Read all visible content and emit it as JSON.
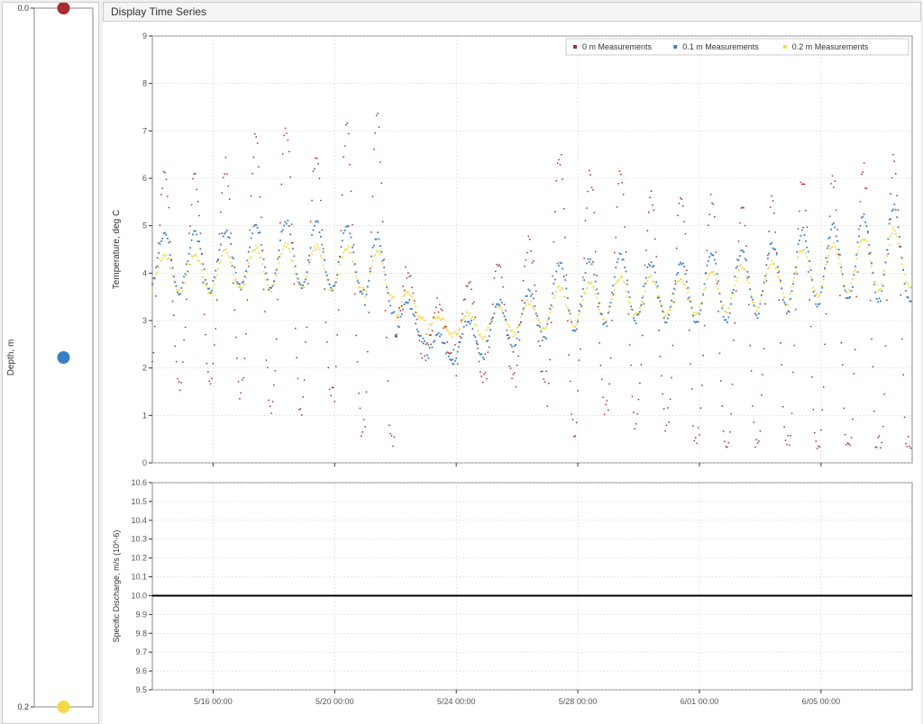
{
  "panel_title": "Display Time Series",
  "depth_panel": {
    "ylabel": "Depth, m",
    "yticks": [
      0.0,
      0.2
    ],
    "ytick_labels": [
      "0.0",
      "0.2"
    ],
    "points": [
      {
        "depth": 0.0,
        "color": "#a82c2c",
        "radius": 7
      },
      {
        "depth": 0.1,
        "color": "#3a7fc4",
        "radius": 7
      },
      {
        "depth": 0.2,
        "color": "#f2d949",
        "radius": 7
      }
    ],
    "background": "#ffffff",
    "border_color": "#888888"
  },
  "temp_chart": {
    "type": "scatter",
    "ylabel": "Temperature, deg C",
    "ylim": [
      0,
      9
    ],
    "yticks": [
      0,
      1,
      2,
      3,
      4,
      5,
      6,
      7,
      8,
      9
    ],
    "xlim": [
      0,
      25
    ],
    "xticks": [
      2,
      6,
      10,
      14,
      18,
      22
    ],
    "xtick_labels": [
      "5/16 00:00",
      "5/20 00:00",
      "5/24 00:00",
      "5/28 00:00",
      "6/01 00:00",
      "6/05 00:00"
    ],
    "grid_color": "#cccccc",
    "background": "#ffffff",
    "border_color": "#888888",
    "marker_size": 1.5,
    "legend": [
      {
        "label": "0 m Measurements",
        "color": "#a82c2c"
      },
      {
        "label": "0.1 m Measurements",
        "color": "#3a7fc4"
      },
      {
        "label": "0.2 m Measurements",
        "color": "#f2d949"
      }
    ],
    "series": {
      "day_count": 25,
      "points_per_day": 24,
      "red": {
        "color": "#a82c2c",
        "base": [
          3.8,
          3.9,
          3.9,
          4.0,
          4.0,
          4.0,
          3.9,
          3.7,
          3.2,
          2.8,
          2.8,
          3.0,
          3.2,
          3.5,
          3.6,
          3.4,
          3.2,
          3.0,
          2.8,
          2.8,
          2.9,
          3.0,
          3.0,
          3.0,
          3.0
        ],
        "amp": [
          2.3,
          2.2,
          2.4,
          2.8,
          3.0,
          2.6,
          3.2,
          3.5,
          0.8,
          0.5,
          1.0,
          1.3,
          1.4,
          3.0,
          2.5,
          2.6,
          2.4,
          2.6,
          2.8,
          2.6,
          2.6,
          3.0,
          3.0,
          3.2,
          3.4
        ],
        "marker_size": 1.5
      },
      "blue": {
        "color": "#3a7fc4",
        "base": [
          4.2,
          4.25,
          4.3,
          4.35,
          4.4,
          4.35,
          4.3,
          4.0,
          3.0,
          2.4,
          2.6,
          2.9,
          3.1,
          3.5,
          3.6,
          3.7,
          3.6,
          3.6,
          3.7,
          3.8,
          3.9,
          4.1,
          4.2,
          4.3,
          4.4
        ],
        "amp": [
          0.6,
          0.6,
          0.6,
          0.7,
          0.7,
          0.7,
          0.7,
          0.8,
          0.4,
          0.3,
          0.4,
          0.5,
          0.5,
          0.7,
          0.7,
          0.7,
          0.6,
          0.6,
          0.7,
          0.7,
          0.7,
          0.8,
          0.8,
          0.9,
          1.0
        ],
        "marker_size": 1.8
      },
      "yellow": {
        "color": "#f2d949",
        "base": [
          4.0,
          4.0,
          4.05,
          4.1,
          4.15,
          4.1,
          4.1,
          3.95,
          3.3,
          2.9,
          2.9,
          3.0,
          3.1,
          3.3,
          3.4,
          3.5,
          3.5,
          3.5,
          3.6,
          3.7,
          3.8,
          4.0,
          4.1,
          4.2,
          4.3
        ],
        "amp": [
          0.4,
          0.4,
          0.4,
          0.45,
          0.45,
          0.45,
          0.45,
          0.5,
          0.3,
          0.2,
          0.25,
          0.3,
          0.3,
          0.4,
          0.4,
          0.4,
          0.4,
          0.4,
          0.4,
          0.45,
          0.45,
          0.5,
          0.5,
          0.55,
          0.6
        ],
        "marker_size": 1.8
      }
    }
  },
  "discharge_chart": {
    "type": "line",
    "ylabel": "Specific Discharge, m/s (10^-6)",
    "ylim": [
      9.5,
      10.6
    ],
    "yticks": [
      9.5,
      9.6,
      9.7,
      9.8,
      9.9,
      10.0,
      10.1,
      10.2,
      10.3,
      10.4,
      10.5,
      10.6
    ],
    "xlim": [
      0,
      25
    ],
    "xticks": [
      2,
      6,
      10,
      14,
      18,
      22
    ],
    "xtick_labels": [
      "5/16 00:00",
      "5/20 00:00",
      "5/24 00:00",
      "5/28 00:00",
      "6/01 00:00",
      "6/05 00:00"
    ],
    "line_value": 10.0,
    "line_color": "#000000",
    "line_width": 2,
    "grid_color": "#cccccc",
    "background": "#ffffff",
    "border_color": "#888888"
  },
  "colors": {
    "panel_bg": "#f0f0f0",
    "panel_border": "#cccccc",
    "title_bg": "#f5f5f5"
  }
}
